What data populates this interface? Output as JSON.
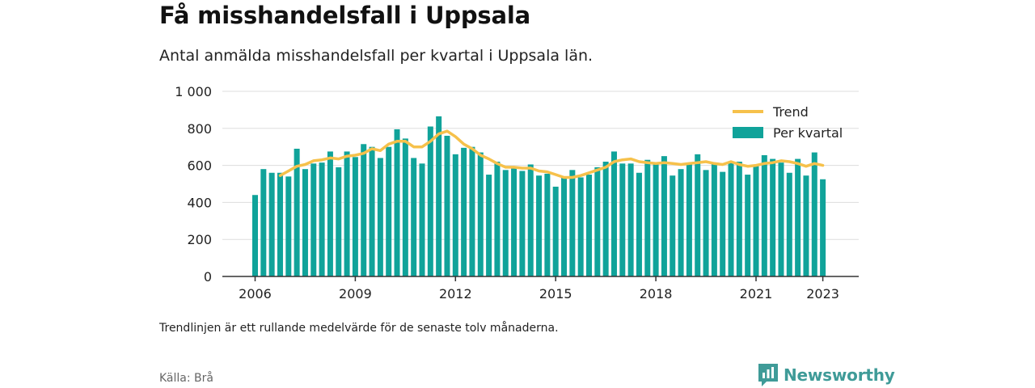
{
  "header": {
    "title": "Få misshandelsfall i Uppsala",
    "subtitle": "Antal anmälda misshandelsfall per kvartal i Uppsala län."
  },
  "footer": {
    "note": "Trendlinjen är ett rullande medelvärde för de senaste tolv månaderna.",
    "source": "Källa: Brå",
    "brand": "Newsworthy"
  },
  "colors": {
    "bar": "#10a39a",
    "trend": "#f6c14b",
    "grid": "#dddddd",
    "axis": "#333333",
    "brand": "#3f9b98"
  },
  "chart_data": {
    "type": "bar",
    "title": "",
    "xlabel": "",
    "ylabel": "",
    "ylim": [
      0,
      1000
    ],
    "yticks": [
      0,
      200,
      400,
      600,
      800,
      1000
    ],
    "ytick_labels": [
      "0",
      "200",
      "400",
      "600",
      "800",
      "1 000"
    ],
    "xticks": [
      "2006",
      "2009",
      "2012",
      "2015",
      "2018",
      "2021",
      "2023"
    ],
    "legend": {
      "position": "top-right",
      "trend_label": "Trend",
      "bar_label": "Per kvartal"
    },
    "grid": true,
    "start_period": "2006 Q1",
    "categories": [
      "2006 Q1",
      "2006 Q2",
      "2006 Q3",
      "2006 Q4",
      "2007 Q1",
      "2007 Q2",
      "2007 Q3",
      "2007 Q4",
      "2008 Q1",
      "2008 Q2",
      "2008 Q3",
      "2008 Q4",
      "2009 Q1",
      "2009 Q2",
      "2009 Q3",
      "2009 Q4",
      "2010 Q1",
      "2010 Q2",
      "2010 Q3",
      "2010 Q4",
      "2011 Q1",
      "2011 Q2",
      "2011 Q3",
      "2011 Q4",
      "2012 Q1",
      "2012 Q2",
      "2012 Q3",
      "2012 Q4",
      "2013 Q1",
      "2013 Q2",
      "2013 Q3",
      "2013 Q4",
      "2014 Q1",
      "2014 Q2",
      "2014 Q3",
      "2014 Q4",
      "2015 Q1",
      "2015 Q2",
      "2015 Q3",
      "2015 Q4",
      "2016 Q1",
      "2016 Q2",
      "2016 Q3",
      "2016 Q4",
      "2017 Q1",
      "2017 Q2",
      "2017 Q3",
      "2017 Q4",
      "2018 Q1",
      "2018 Q2",
      "2018 Q3",
      "2018 Q4",
      "2019 Q1",
      "2019 Q2",
      "2019 Q3",
      "2019 Q4",
      "2020 Q1",
      "2020 Q2",
      "2020 Q3",
      "2020 Q4",
      "2021 Q1",
      "2021 Q2",
      "2021 Q3",
      "2021 Q4",
      "2022 Q1",
      "2022 Q2",
      "2022 Q3",
      "2022 Q4",
      "2023 Q1"
    ],
    "series": [
      {
        "name": "Per kvartal",
        "type": "bar",
        "values": [
          440,
          580,
          560,
          560,
          540,
          690,
          580,
          610,
          615,
          675,
          590,
          675,
          645,
          715,
          700,
          640,
          700,
          795,
          745,
          640,
          610,
          810,
          865,
          760,
          660,
          695,
          700,
          670,
          550,
          620,
          575,
          590,
          570,
          605,
          545,
          555,
          485,
          540,
          575,
          535,
          550,
          590,
          620,
          675,
          610,
          610,
          560,
          630,
          605,
          650,
          545,
          580,
          615,
          660,
          575,
          610,
          565,
          620,
          620,
          550,
          600,
          655,
          635,
          615,
          560,
          635,
          545,
          670,
          525
        ]
      },
      {
        "name": "Trend",
        "type": "line",
        "values": [
          null,
          null,
          null,
          545,
          570,
          595,
          605,
          625,
          630,
          640,
          635,
          650,
          655,
          665,
          690,
          680,
          715,
          730,
          730,
          700,
          700,
          730,
          770,
          785,
          755,
          715,
          690,
          655,
          635,
          610,
          590,
          590,
          585,
          585,
          570,
          565,
          550,
          535,
          535,
          545,
          560,
          575,
          590,
          620,
          630,
          635,
          620,
          615,
          610,
          615,
          610,
          605,
          610,
          615,
          620,
          610,
          605,
          620,
          605,
          595,
          600,
          610,
          615,
          625,
          620,
          610,
          595,
          610,
          600
        ]
      }
    ]
  }
}
